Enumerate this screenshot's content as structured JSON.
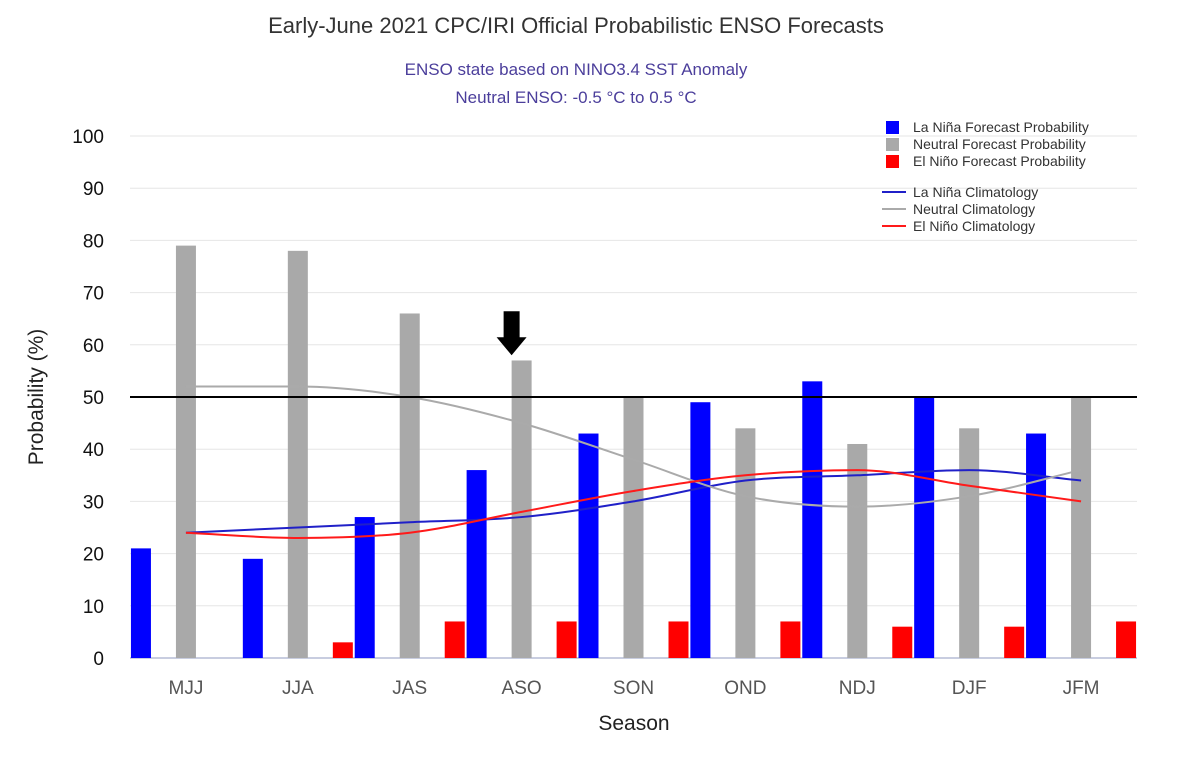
{
  "chart_data": {
    "type": "bar",
    "title": "Early-June 2021 CPC/IRI Official Probabilistic ENSO Forecasts",
    "subtitle_lines": [
      "ENSO state based on NINO3.4 SST Anomaly",
      "Neutral ENSO: -0.5 °C to 0.5 °C"
    ],
    "xlabel": "Season",
    "ylabel": "Probability (%)",
    "ylim": [
      0,
      100
    ],
    "yticks": [
      0,
      10,
      20,
      30,
      40,
      50,
      60,
      70,
      80,
      90,
      100
    ],
    "grid": true,
    "reference_line": 50,
    "legend_position": "top-right",
    "categories": [
      "MJJ",
      "JJA",
      "JAS",
      "ASO",
      "SON",
      "OND",
      "NDJ",
      "DJF",
      "JFM"
    ],
    "series": [
      {
        "name": "La Niña Forecast Probability",
        "kind": "bar",
        "color": "#0000ff",
        "values": [
          21,
          19,
          27,
          36,
          43,
          49,
          53,
          50,
          43
        ]
      },
      {
        "name": "Neutral Forecast Probability",
        "kind": "bar",
        "color": "#a9a9a9",
        "values": [
          79,
          78,
          66,
          57,
          50,
          44,
          41,
          44,
          50
        ]
      },
      {
        "name": "El Niño Forecast Probability",
        "kind": "bar",
        "color": "#ff0000",
        "values": [
          0,
          3,
          7,
          7,
          7,
          7,
          6,
          6,
          7
        ]
      },
      {
        "name": "La Niña Climatology",
        "kind": "line",
        "color": "#2020c8",
        "values": [
          24,
          25,
          26,
          27,
          30,
          34,
          35,
          36,
          34
        ]
      },
      {
        "name": "Neutral Climatology",
        "kind": "line",
        "color": "#aaaaaa",
        "values": [
          52,
          52,
          50,
          45,
          38,
          31,
          29,
          31,
          36
        ]
      },
      {
        "name": "El Niño Climatology",
        "kind": "line",
        "color": "#ff1a1a",
        "values": [
          24,
          23,
          24,
          28,
          32,
          35,
          36,
          33,
          30
        ]
      }
    ],
    "annotation": {
      "type": "down-arrow",
      "category": "ASO",
      "value": 58,
      "color": "#000000"
    }
  }
}
